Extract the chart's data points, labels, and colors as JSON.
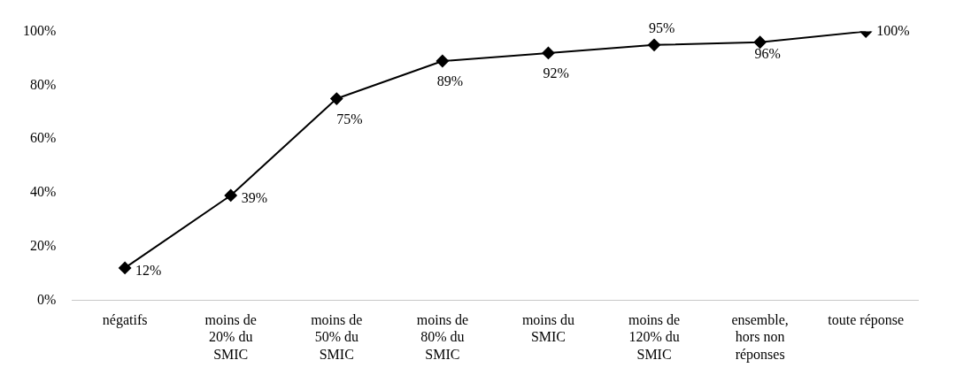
{
  "chart_data": {
    "type": "line",
    "categories": [
      "négatifs",
      "moins de\n20% du\nSMIC",
      "moins de\n50% du\nSMIC",
      "moins de\n80% du\nSMIC",
      "moins du\nSMIC",
      "moins de\n120% du\nSMIC",
      "ensemble,\nhors non\nréponses",
      "toute réponse"
    ],
    "series": [
      {
        "color": "#000000",
        "values": [
          12,
          39,
          75,
          89,
          92,
          95,
          96,
          100
        ]
      }
    ],
    "ylim": [
      0,
      100
    ],
    "yticks": [
      {
        "value": 0,
        "label": "0%"
      },
      {
        "value": 20,
        "label": "20%"
      },
      {
        "value": 40,
        "label": "40%"
      },
      {
        "value": 60,
        "label": "60%"
      },
      {
        "value": 80,
        "label": "80%"
      },
      {
        "value": 100,
        "label": "100%"
      }
    ],
    "value_labels": [
      "12%",
      "39%",
      "75%",
      "89%",
      "92%",
      "95%",
      "96%",
      "100%"
    ],
    "marker": "diamond",
    "line_style": "solid",
    "legend": false,
    "grid": false
  }
}
